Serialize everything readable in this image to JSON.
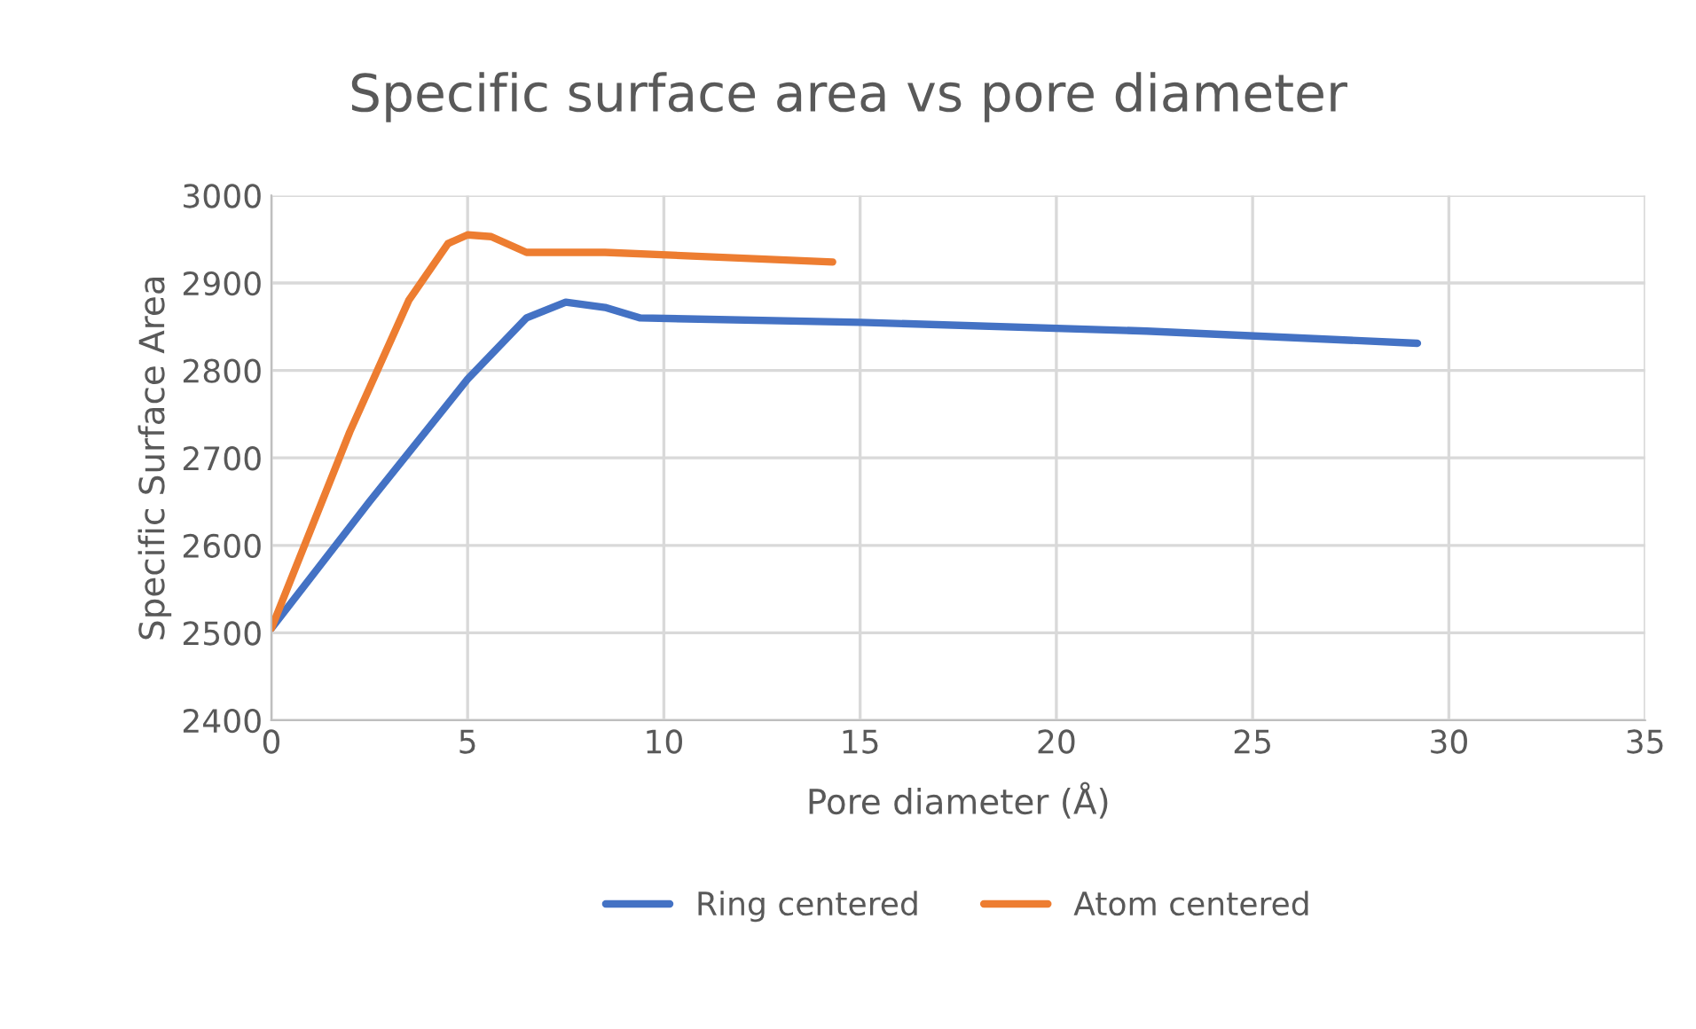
{
  "chart_data": {
    "type": "line",
    "title": "Specific surface area vs pore diameter",
    "xlabel": "Pore diameter (Å)",
    "ylabel": "Specific Surface Area",
    "series": [
      {
        "name": "Ring centered",
        "color": "#4472c4",
        "x": [
          0,
          2.5,
          5,
          6.5,
          7.5,
          8.5,
          9.4,
          15,
          22.3,
          29.2
        ],
        "values": [
          2505,
          2650,
          2790,
          2860,
          2878,
          2872,
          2860,
          2855,
          2845,
          2831
        ]
      },
      {
        "name": "Atom centered",
        "color": "#ed7d31",
        "x": [
          0,
          2,
          3.5,
          4.5,
          5,
          5.6,
          6.5,
          8.5,
          14.3
        ],
        "values": [
          2505,
          2730,
          2880,
          2945,
          2955,
          2953,
          2935,
          2935,
          2924
        ]
      }
    ],
    "xlim": [
      0,
      35
    ],
    "xticks": [
      0,
      5,
      10,
      15,
      20,
      25,
      30,
      35
    ],
    "ylim": [
      2400,
      3000
    ],
    "yticks": [
      2400,
      2500,
      2600,
      2700,
      2800,
      2900,
      3000
    ],
    "grid": true,
    "legend": "bottom",
    "marker": "none",
    "line_style": "solid"
  }
}
